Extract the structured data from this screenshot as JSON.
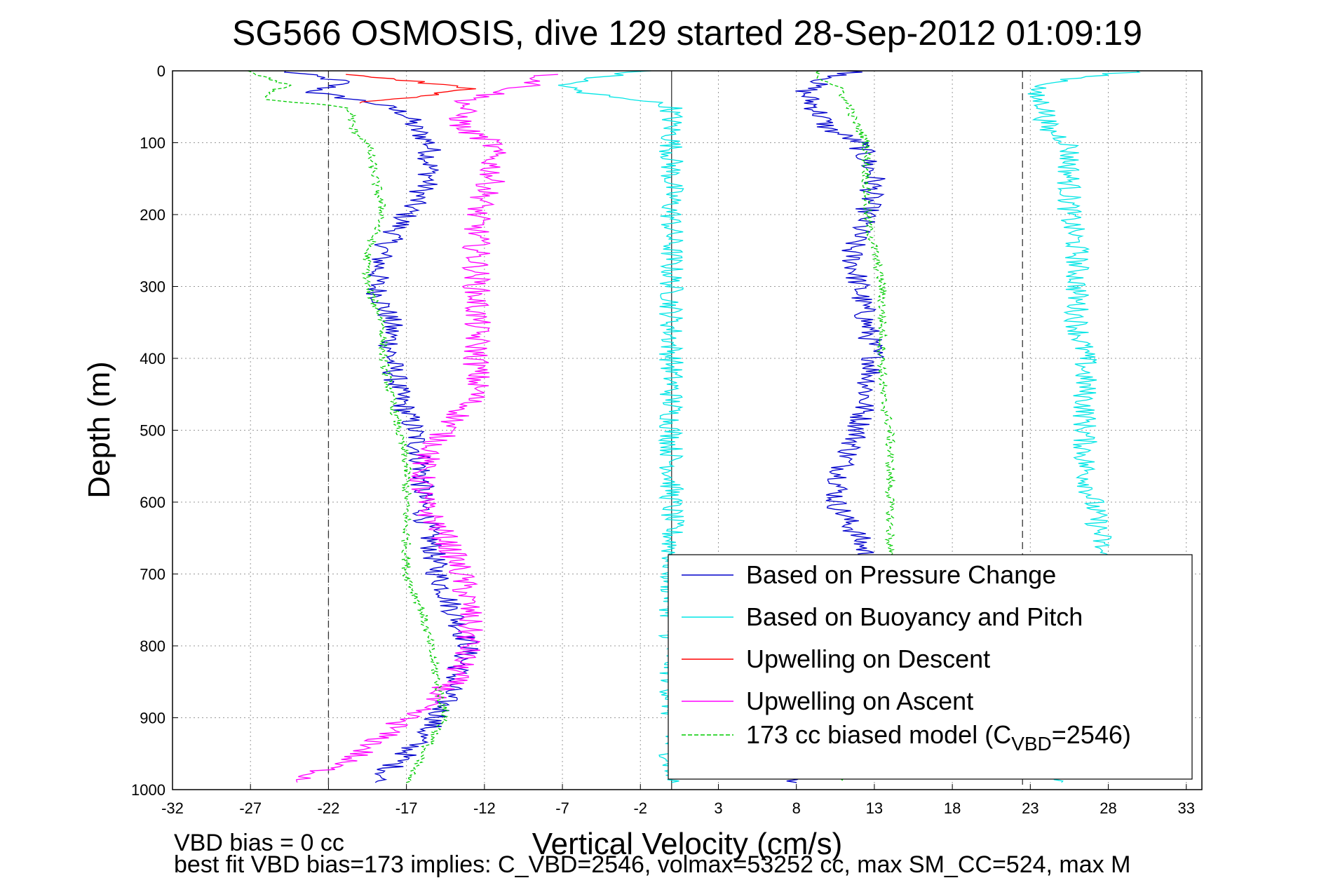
{
  "chart_data": {
    "type": "line",
    "title": "SG566 OSMOSIS, dive 129 started 28-Sep-2012 01:09:19",
    "xlabel": "Vertical Velocity (cm/s)",
    "ylabel": "Depth (m)",
    "xlim": [
      -32,
      34
    ],
    "ylim": [
      0,
      1000
    ],
    "y_reversed": true,
    "grid": "dotted",
    "xticks": [
      -32,
      -27,
      -22,
      -17,
      -12,
      -7,
      -2,
      3,
      8,
      13,
      18,
      23,
      28,
      33
    ],
    "yticks": [
      0,
      100,
      200,
      300,
      400,
      500,
      600,
      700,
      800,
      900,
      1000
    ],
    "reference_lines": [
      {
        "x": -22,
        "style": "dashed"
      },
      {
        "x": 0,
        "style": "solid"
      },
      {
        "x": 22.5,
        "style": "dashed"
      }
    ],
    "legend_position": "bottom-right",
    "series": [
      {
        "name": "Based on Pressure Change",
        "color": "#0000cc",
        "style": "solid",
        "depth": [
          0,
          15,
          30,
          45,
          60,
          80,
          100,
          150,
          200,
          250,
          300,
          350,
          400,
          450,
          500,
          550,
          600,
          650,
          700,
          750,
          800,
          850,
          900,
          950,
          990
        ],
        "descent": [
          -25,
          -21,
          -23,
          -19,
          -17,
          -16.5,
          -15.5,
          -15.5,
          -17,
          -18.5,
          -19,
          -18,
          -18,
          -17.5,
          -16.5,
          -16,
          -16,
          -15.5,
          -15,
          -14,
          -13,
          -14,
          -15,
          -17,
          -19
        ],
        "ascent": [
          12,
          9.5,
          8.5,
          9,
          9.5,
          10,
          12,
          13,
          12.5,
          11.5,
          12,
          12.5,
          13,
          12.5,
          12,
          11,
          10.5,
          12,
          13,
          13.5,
          14,
          12,
          12,
          9,
          8
        ]
      },
      {
        "name": "Based on Buoyancy and Pitch",
        "color": "#00e5e5",
        "style": "solid",
        "depth": [
          0,
          10,
          20,
          30,
          40,
          50,
          60,
          80,
          100,
          150,
          200,
          250,
          300,
          350,
          400,
          450,
          500,
          550,
          600,
          650,
          700,
          750,
          800,
          850,
          900,
          950,
          990
        ],
        "descent": [
          -2,
          -5,
          -7,
          -6,
          -2,
          0,
          0,
          0,
          0,
          0,
          0,
          0,
          0,
          0,
          0,
          0,
          0,
          0,
          0,
          0,
          0,
          0,
          0,
          0,
          0,
          0,
          0
        ],
        "ascent": [
          30,
          26,
          24,
          23,
          23.5,
          24,
          24,
          24,
          25.5,
          25.5,
          25.5,
          26,
          26,
          26,
          26.5,
          26.5,
          26.5,
          26.5,
          27,
          27.5,
          27.5,
          28,
          29,
          28,
          28,
          25,
          25
        ]
      },
      {
        "name": "Upwelling on Descent",
        "color": "#ff0000",
        "style": "solid",
        "depth": [
          5,
          15,
          25,
          35,
          45
        ],
        "x": [
          -21,
          -16,
          -13,
          -15.5,
          -20
        ]
      },
      {
        "name": "Upwelling on Ascent",
        "color": "#ff00ff",
        "style": "solid",
        "depth": [
          5,
          20,
          40,
          60,
          80,
          100,
          150,
          200,
          250,
          300,
          350,
          400,
          450,
          500,
          550,
          600,
          650,
          700,
          750,
          800,
          850,
          900,
          950,
          990
        ],
        "x": [
          -8,
          -9,
          -13,
          -13.5,
          -13.5,
          -11.5,
          -11.5,
          -12.5,
          -12.5,
          -12.5,
          -12.5,
          -12.5,
          -12.5,
          -14.5,
          -16,
          -16,
          -14.5,
          -13.5,
          -13,
          -13,
          -14,
          -17,
          -20,
          -24
        ]
      },
      {
        "name": "173 cc biased model (C_VBD=2546)",
        "color": "#00cc00",
        "style": "dashed",
        "depth": [
          0,
          10,
          20,
          30,
          40,
          50,
          60,
          80,
          100,
          150,
          200,
          250,
          300,
          350,
          400,
          450,
          500,
          550,
          600,
          650,
          700,
          750,
          800,
          850,
          900,
          950,
          990
        ],
        "descent": [
          -27,
          -26,
          -24.5,
          -26,
          -26,
          -21,
          -20.5,
          -20.5,
          -19.5,
          -19,
          -18.5,
          -19.5,
          -19.5,
          -18.5,
          -18.5,
          -18,
          -17.5,
          -17,
          -17,
          -17,
          -17,
          -16,
          -15.5,
          -15,
          -14.5,
          -16,
          -17
        ],
        "ascent": [
          9.5,
          9.5,
          10.5,
          11,
          11,
          11.5,
          11.5,
          12,
          12.5,
          12.5,
          12.5,
          13,
          13.5,
          13.5,
          13.5,
          13.5,
          14,
          14,
          14,
          14,
          14,
          14.5,
          15,
          15,
          14,
          12,
          11
        ]
      }
    ],
    "legend": [
      {
        "label": "Based on Pressure Change",
        "color": "#0000cc",
        "style": "solid"
      },
      {
        "label": "Based on Buoyancy and Pitch",
        "color": "#00e5e5",
        "style": "solid"
      },
      {
        "label": "Upwelling on Descent",
        "color": "#ff0000",
        "style": "solid"
      },
      {
        "label": "Upwelling on Ascent",
        "color": "#ff00ff",
        "style": "solid"
      },
      {
        "label_main": "173 cc biased model (C",
        "label_sub": "VBD",
        "label_end": "=2546)",
        "color": "#00cc00",
        "style": "dashed"
      }
    ]
  },
  "notes": {
    "line1": "VBD bias = 0 cc",
    "line2": "best fit VBD bias=173 implies: C_VBD=2546, volmax=53252 cc, max SM_CC=524, max M"
  }
}
